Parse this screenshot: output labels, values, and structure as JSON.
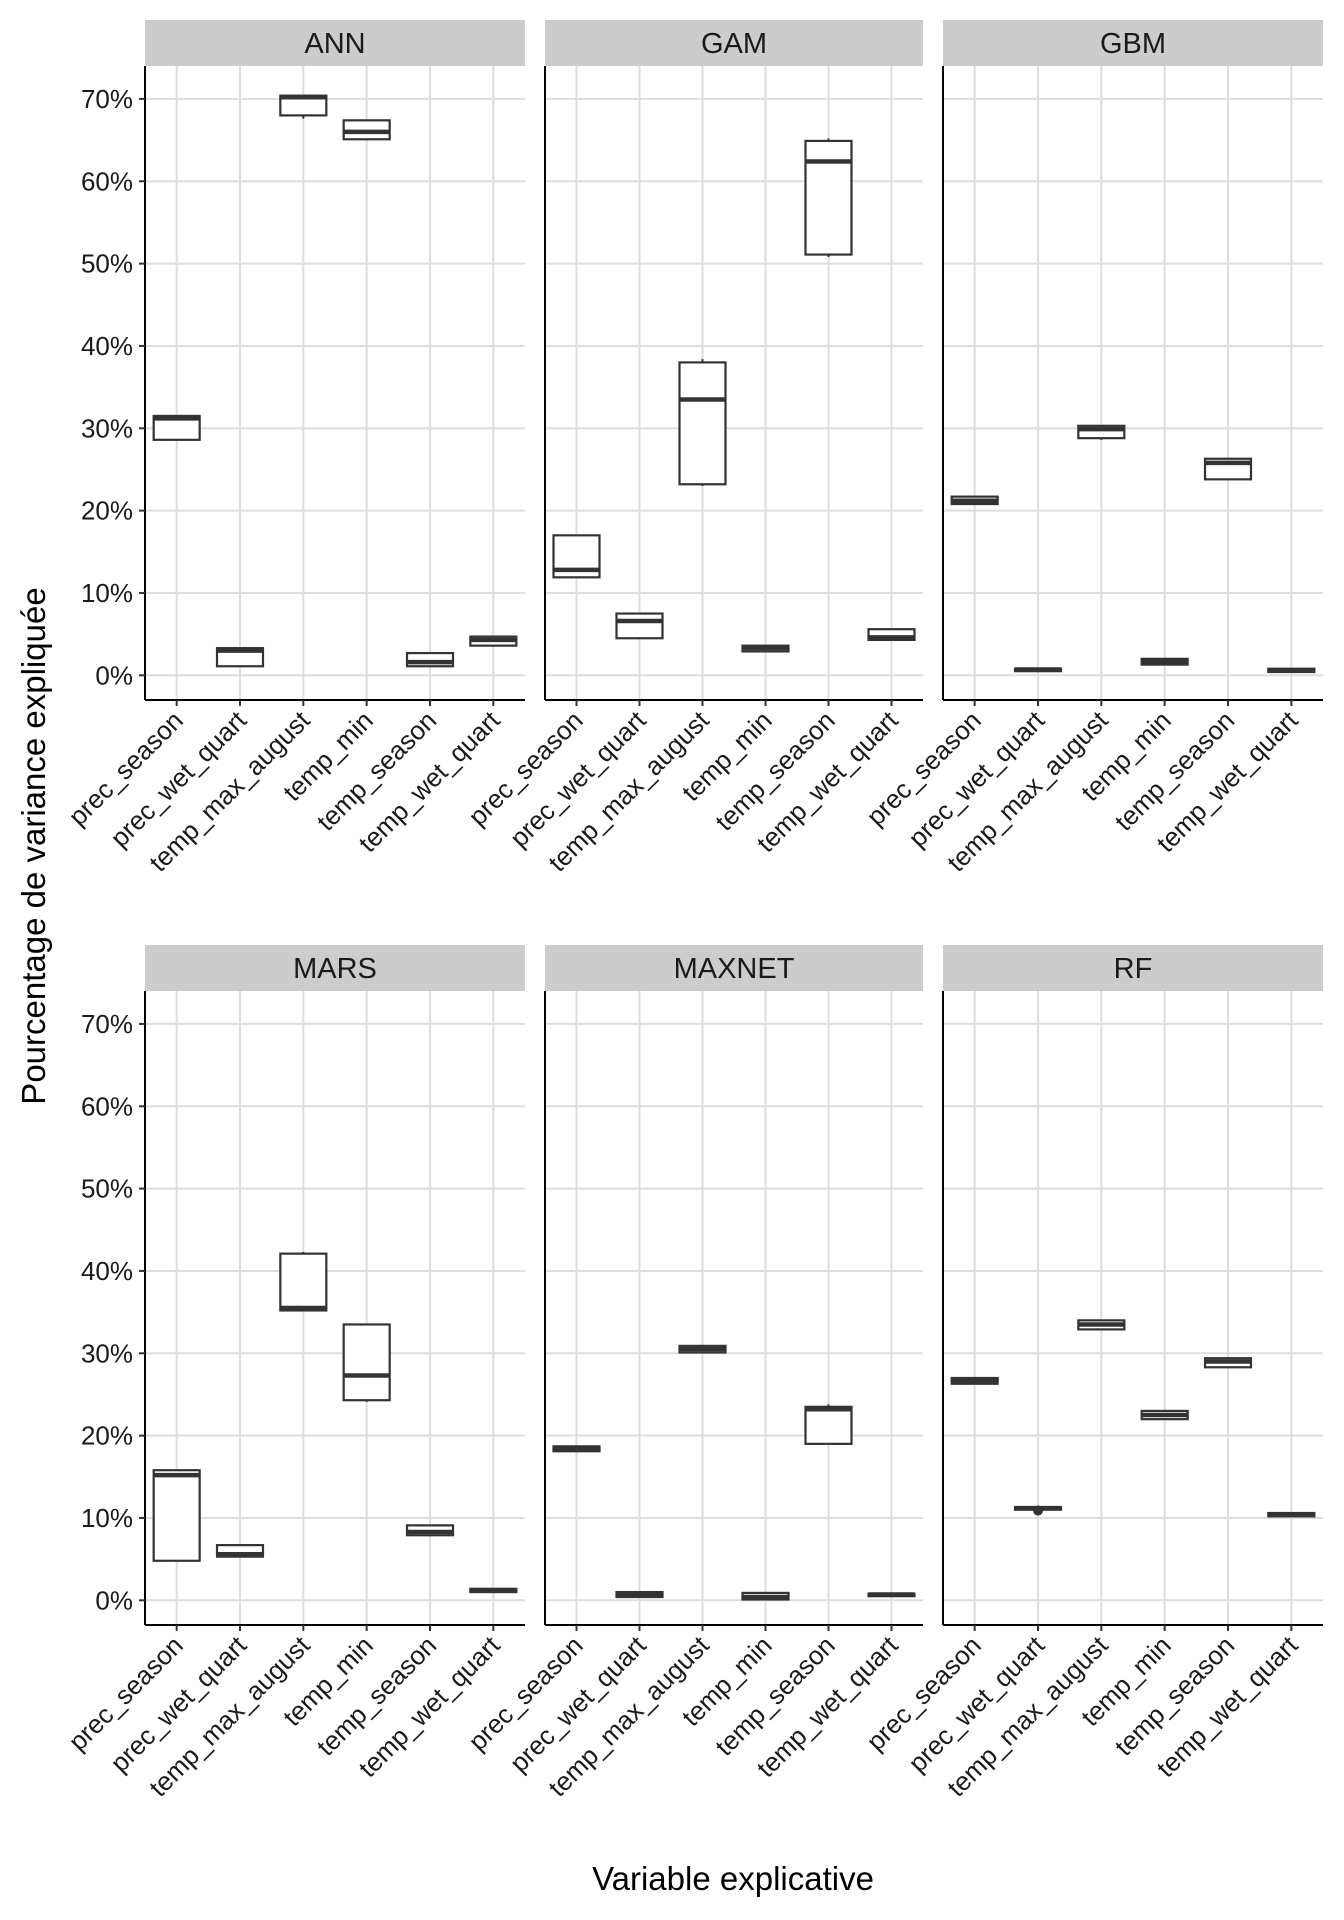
{
  "chart_data": {
    "type": "boxplot",
    "xlabel": "Variable explicative",
    "ylabel": "Pourcentage de variance expliquée",
    "ylim": [
      -3,
      74
    ],
    "yticks": [
      0,
      10,
      20,
      30,
      40,
      50,
      60,
      70
    ],
    "ytick_labels": [
      "0%",
      "10%",
      "20%",
      "30%",
      "40%",
      "50%",
      "60%",
      "70%"
    ],
    "categories": [
      "prec_season",
      "prec_wet_quart",
      "temp_max_august",
      "temp_min",
      "temp_season",
      "temp_wet_quart"
    ],
    "grid": true,
    "panels": [
      {
        "name": "ANN",
        "boxes": [
          {
            "category": "prec_season",
            "min": 28.6,
            "q1": 28.6,
            "median": 31.2,
            "q3": 31.5,
            "max": 31.6
          },
          {
            "category": "prec_wet_quart",
            "min": 1.1,
            "q1": 1.1,
            "median": 3.0,
            "q3": 3.3,
            "max": 3.3
          },
          {
            "category": "temp_max_august",
            "min": 67.6,
            "q1": 68.0,
            "median": 70.2,
            "q3": 70.4,
            "max": 70.4
          },
          {
            "category": "temp_min",
            "min": 65.1,
            "q1": 65.1,
            "median": 66.0,
            "q3": 67.4,
            "max": 67.4
          },
          {
            "category": "temp_season",
            "min": 1.1,
            "q1": 1.1,
            "median": 1.6,
            "q3": 2.7,
            "max": 2.7
          },
          {
            "category": "temp_wet_quart",
            "min": 3.6,
            "q1": 3.6,
            "median": 4.3,
            "q3": 4.7,
            "max": 4.7
          }
        ]
      },
      {
        "name": "GAM",
        "boxes": [
          {
            "category": "prec_season",
            "min": 11.9,
            "q1": 11.9,
            "median": 12.8,
            "q3": 17.0,
            "max": 17.0
          },
          {
            "category": "prec_wet_quart",
            "min": 4.5,
            "q1": 4.5,
            "median": 6.6,
            "q3": 7.5,
            "max": 7.5
          },
          {
            "category": "temp_max_august",
            "min": 23.0,
            "q1": 23.2,
            "median": 33.5,
            "q3": 38.0,
            "max": 38.4
          },
          {
            "category": "temp_min",
            "min": 2.9,
            "q1": 2.9,
            "median": 3.3,
            "q3": 3.6,
            "max": 3.6
          },
          {
            "category": "temp_season",
            "min": 50.8,
            "q1": 51.1,
            "median": 62.4,
            "q3": 64.9,
            "max": 65.2
          },
          {
            "category": "temp_wet_quart",
            "min": 4.3,
            "q1": 4.3,
            "median": 4.6,
            "q3": 5.6,
            "max": 5.6
          }
        ]
      },
      {
        "name": "GBM",
        "boxes": [
          {
            "category": "prec_season",
            "min": 20.8,
            "q1": 20.8,
            "median": 21.2,
            "q3": 21.7,
            "max": 21.7
          },
          {
            "category": "prec_wet_quart",
            "min": 0.5,
            "q1": 0.5,
            "median": 0.7,
            "q3": 0.8,
            "max": 0.8
          },
          {
            "category": "temp_max_august",
            "min": 28.6,
            "q1": 28.8,
            "median": 29.9,
            "q3": 30.3,
            "max": 30.3
          },
          {
            "category": "temp_min",
            "min": 1.3,
            "q1": 1.3,
            "median": 1.7,
            "q3": 2.0,
            "max": 2.0
          },
          {
            "category": "temp_season",
            "min": 23.8,
            "q1": 23.8,
            "median": 25.8,
            "q3": 26.3,
            "max": 26.3
          },
          {
            "category": "temp_wet_quart",
            "min": 0.4,
            "q1": 0.4,
            "median": 0.6,
            "q3": 0.8,
            "max": 0.8
          }
        ]
      },
      {
        "name": "MARS",
        "boxes": [
          {
            "category": "prec_season",
            "min": 4.8,
            "q1": 4.8,
            "median": 15.2,
            "q3": 15.8,
            "max": 15.8
          },
          {
            "category": "prec_wet_quart",
            "min": 5.3,
            "q1": 5.3,
            "median": 5.6,
            "q3": 6.7,
            "max": 6.7
          },
          {
            "category": "temp_max_august",
            "min": 35.2,
            "q1": 35.2,
            "median": 35.5,
            "q3": 42.1,
            "max": 42.3
          },
          {
            "category": "temp_min",
            "min": 24.1,
            "q1": 24.3,
            "median": 27.3,
            "q3": 33.5,
            "max": 33.6
          },
          {
            "category": "temp_season",
            "min": 7.9,
            "q1": 7.9,
            "median": 8.3,
            "q3": 9.1,
            "max": 9.1
          },
          {
            "category": "temp_wet_quart",
            "min": 1.0,
            "q1": 1.0,
            "median": 1.2,
            "q3": 1.4,
            "max": 1.4
          }
        ]
      },
      {
        "name": "MAXNET",
        "boxes": [
          {
            "category": "prec_season",
            "min": 18.1,
            "q1": 18.1,
            "median": 18.4,
            "q3": 18.7,
            "max": 18.7
          },
          {
            "category": "prec_wet_quart",
            "min": 0.4,
            "q1": 0.4,
            "median": 0.8,
            "q3": 1.0,
            "max": 1.0
          },
          {
            "category": "temp_max_august",
            "min": 30.1,
            "q1": 30.1,
            "median": 30.5,
            "q3": 30.9,
            "max": 30.9
          },
          {
            "category": "temp_min",
            "min": 0.1,
            "q1": 0.1,
            "median": 0.4,
            "q3": 0.9,
            "max": 0.9
          },
          {
            "category": "temp_season",
            "min": 19.0,
            "q1": 19.0,
            "median": 23.2,
            "q3": 23.5,
            "max": 23.8
          },
          {
            "category": "temp_wet_quart",
            "min": 0.5,
            "q1": 0.5,
            "median": 0.7,
            "q3": 0.8,
            "max": 0.8
          }
        ]
      },
      {
        "name": "RF",
        "boxes": [
          {
            "category": "prec_season",
            "min": 26.3,
            "q1": 26.3,
            "median": 26.6,
            "q3": 27.0,
            "max": 27.0
          },
          {
            "category": "prec_wet_quart",
            "min": 11.0,
            "q1": 11.0,
            "median": 11.2,
            "q3": 11.3,
            "max": 11.3,
            "outliers": [
              10.9
            ]
          },
          {
            "category": "temp_max_august",
            "min": 32.9,
            "q1": 32.9,
            "median": 33.5,
            "q3": 34.0,
            "max": 34.0
          },
          {
            "category": "temp_min",
            "min": 22.0,
            "q1": 22.0,
            "median": 22.5,
            "q3": 23.0,
            "max": 23.0
          },
          {
            "category": "temp_season",
            "min": 28.3,
            "q1": 28.3,
            "median": 29.0,
            "q3": 29.4,
            "max": 29.4
          },
          {
            "category": "temp_wet_quart",
            "min": 10.2,
            "q1": 10.2,
            "median": 10.4,
            "q3": 10.6,
            "max": 10.6
          }
        ]
      }
    ]
  }
}
